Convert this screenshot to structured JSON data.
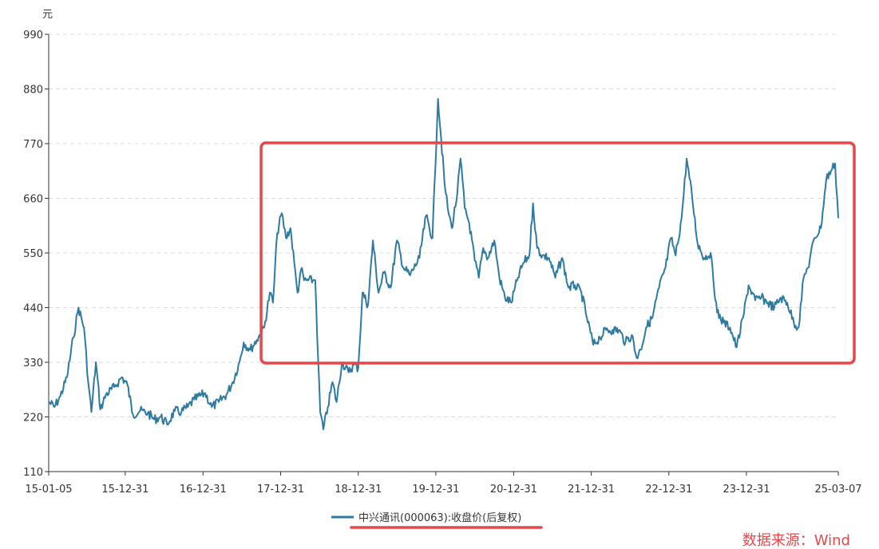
{
  "chart_data": {
    "type": "line",
    "unit": "元",
    "ylim": [
      110,
      990
    ],
    "y_ticks": [
      110,
      220,
      330,
      440,
      550,
      660,
      770,
      880,
      990
    ],
    "x_range": [
      "2015-01-05",
      "2025-03-07"
    ],
    "x_ticks": [
      {
        "date": "2015-01-05",
        "label": "15-01-05"
      },
      {
        "date": "2015-12-31",
        "label": "15-12-31"
      },
      {
        "date": "2016-12-31",
        "label": "16-12-31"
      },
      {
        "date": "2017-12-31",
        "label": "17-12-31"
      },
      {
        "date": "2018-12-31",
        "label": "18-12-31"
      },
      {
        "date": "2019-12-31",
        "label": "19-12-31"
      },
      {
        "date": "2020-12-31",
        "label": "20-12-31"
      },
      {
        "date": "2021-12-31",
        "label": "21-12-31"
      },
      {
        "date": "2022-12-31",
        "label": "22-12-31"
      },
      {
        "date": "2023-12-31",
        "label": "23-12-31"
      },
      {
        "date": "2025-03-07",
        "label": "25-03-07"
      }
    ],
    "grid": "horizontal-dashed",
    "legend_position": "bottom-center",
    "series": [
      {
        "name": "中兴通讯(000063):收盘价(后复权)",
        "color": "#2e7aa0",
        "points": [
          [
            "2015-01-05",
            250
          ],
          [
            "2015-02-01",
            240
          ],
          [
            "2015-03-01",
            262
          ],
          [
            "2015-04-01",
            300
          ],
          [
            "2015-05-01",
            380
          ],
          [
            "2015-05-25",
            440
          ],
          [
            "2015-06-20",
            400
          ],
          [
            "2015-07-10",
            290
          ],
          [
            "2015-07-25",
            230
          ],
          [
            "2015-08-15",
            330
          ],
          [
            "2015-09-05",
            235
          ],
          [
            "2015-10-01",
            265
          ],
          [
            "2015-11-10",
            280
          ],
          [
            "2015-12-15",
            300
          ],
          [
            "2016-01-10",
            285
          ],
          [
            "2016-02-05",
            225
          ],
          [
            "2016-03-10",
            232
          ],
          [
            "2016-04-15",
            228
          ],
          [
            "2016-05-15",
            215
          ],
          [
            "2016-06-15",
            220
          ],
          [
            "2016-07-15",
            205
          ],
          [
            "2016-08-20",
            232
          ],
          [
            "2016-09-20",
            230
          ],
          [
            "2016-10-20",
            240
          ],
          [
            "2016-11-20",
            255
          ],
          [
            "2017-01-10",
            268
          ],
          [
            "2017-02-10",
            240
          ],
          [
            "2017-03-15",
            250
          ],
          [
            "2017-04-20",
            265
          ],
          [
            "2017-05-20",
            290
          ],
          [
            "2017-06-20",
            330
          ],
          [
            "2017-07-10",
            370
          ],
          [
            "2017-08-10",
            355
          ],
          [
            "2017-09-10",
            375
          ],
          [
            "2017-10-15",
            400
          ],
          [
            "2017-11-10",
            470
          ],
          [
            "2017-11-25",
            450
          ],
          [
            "2017-12-15",
            590
          ],
          [
            "2018-01-05",
            630
          ],
          [
            "2018-01-25",
            580
          ],
          [
            "2018-02-15",
            600
          ],
          [
            "2018-03-05",
            530
          ],
          [
            "2018-03-20",
            470
          ],
          [
            "2018-04-10",
            520
          ],
          [
            "2018-04-20",
            495
          ],
          [
            "2018-05-01",
            495
          ],
          [
            "2018-06-01",
            495
          ],
          [
            "2018-06-12",
            495
          ],
          [
            "2018-06-25",
            340
          ],
          [
            "2018-07-05",
            230
          ],
          [
            "2018-07-20",
            195
          ],
          [
            "2018-08-10",
            240
          ],
          [
            "2018-09-01",
            290
          ],
          [
            "2018-09-20",
            250
          ],
          [
            "2018-10-15",
            330
          ],
          [
            "2018-11-15",
            310
          ],
          [
            "2018-12-10",
            325
          ],
          [
            "2018-12-31",
            318
          ],
          [
            "2019-01-20",
            470
          ],
          [
            "2019-02-15",
            445
          ],
          [
            "2019-03-10",
            575
          ],
          [
            "2019-04-05",
            470
          ],
          [
            "2019-05-01",
            510
          ],
          [
            "2019-06-01",
            480
          ],
          [
            "2019-07-01",
            575
          ],
          [
            "2019-08-01",
            520
          ],
          [
            "2019-09-01",
            505
          ],
          [
            "2019-10-15",
            540
          ],
          [
            "2019-11-15",
            625
          ],
          [
            "2019-12-15",
            580
          ],
          [
            "2020-01-10",
            860
          ],
          [
            "2020-01-25",
            780
          ],
          [
            "2020-02-10",
            690
          ],
          [
            "2020-02-25",
            640
          ],
          [
            "2020-03-15",
            600
          ],
          [
            "2020-04-10",
            670
          ],
          [
            "2020-04-25",
            740
          ],
          [
            "2020-05-15",
            640
          ],
          [
            "2020-06-05",
            610
          ],
          [
            "2020-07-01",
            535
          ],
          [
            "2020-07-20",
            500
          ],
          [
            "2020-08-10",
            560
          ],
          [
            "2020-09-01",
            540
          ],
          [
            "2020-10-01",
            575
          ],
          [
            "2020-10-25",
            500
          ],
          [
            "2020-11-20",
            460
          ],
          [
            "2020-12-20",
            450
          ],
          [
            "2021-01-20",
            500
          ],
          [
            "2021-02-15",
            530
          ],
          [
            "2021-03-15",
            545
          ],
          [
            "2021-04-01",
            650
          ],
          [
            "2021-04-20",
            560
          ],
          [
            "2021-05-15",
            545
          ],
          [
            "2021-06-15",
            540
          ],
          [
            "2021-07-15",
            500
          ],
          [
            "2021-08-15",
            540
          ],
          [
            "2021-09-15",
            480
          ],
          [
            "2021-10-15",
            485
          ],
          [
            "2021-11-15",
            470
          ],
          [
            "2021-12-10",
            420
          ],
          [
            "2022-01-10",
            365
          ],
          [
            "2022-02-10",
            380
          ],
          [
            "2022-03-10",
            395
          ],
          [
            "2022-04-10",
            395
          ],
          [
            "2022-05-10",
            395
          ],
          [
            "2022-06-10",
            370
          ],
          [
            "2022-07-10",
            385
          ],
          [
            "2022-08-01",
            340
          ],
          [
            "2022-08-20",
            355
          ],
          [
            "2022-09-15",
            400
          ],
          [
            "2022-10-15",
            420
          ],
          [
            "2022-11-15",
            480
          ],
          [
            "2022-12-15",
            520
          ],
          [
            "2023-01-10",
            580
          ],
          [
            "2023-02-01",
            545
          ],
          [
            "2023-03-01",
            620
          ],
          [
            "2023-03-25",
            740
          ],
          [
            "2023-04-20",
            660
          ],
          [
            "2023-05-15",
            570
          ],
          [
            "2023-06-15",
            540
          ],
          [
            "2023-07-15",
            550
          ],
          [
            "2023-08-15",
            430
          ],
          [
            "2023-09-15",
            410
          ],
          [
            "2023-10-15",
            400
          ],
          [
            "2023-11-15",
            360
          ],
          [
            "2023-12-15",
            420
          ],
          [
            "2024-01-10",
            485
          ],
          [
            "2024-02-10",
            455
          ],
          [
            "2024-03-10",
            460
          ],
          [
            "2024-04-10",
            450
          ],
          [
            "2024-05-10",
            440
          ],
          [
            "2024-06-10",
            460
          ],
          [
            "2024-07-10",
            450
          ],
          [
            "2024-08-10",
            410
          ],
          [
            "2024-09-01",
            400
          ],
          [
            "2024-09-25",
            500
          ],
          [
            "2024-10-15",
            520
          ],
          [
            "2024-11-15",
            580
          ],
          [
            "2024-12-15",
            600
          ],
          [
            "2025-01-10",
            700
          ],
          [
            "2025-02-01",
            715
          ],
          [
            "2025-02-20",
            730
          ],
          [
            "2025-03-07",
            620
          ]
        ]
      }
    ],
    "highlight_box": {
      "from": "2017-10-15",
      "to": "2025-03-07",
      "y_min": 330,
      "y_max": 770,
      "color": "#e8474a"
    },
    "legend_underline_color": "#e8474a",
    "source": "数据来源：Wind"
  }
}
